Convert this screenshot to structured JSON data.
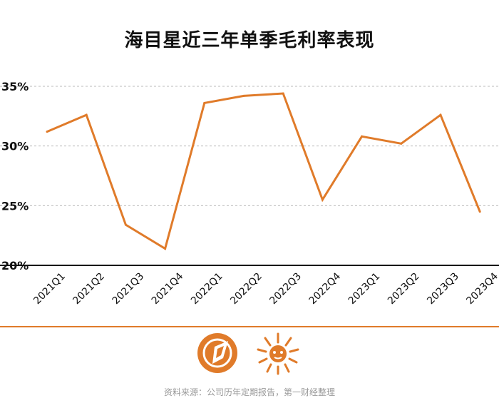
{
  "title": "海目星近三年单季毛利率表现",
  "source": "资料来源：公司历年定期报告，第一财经整理",
  "colors": {
    "line": "#E07B2A",
    "grid": "#bbbbbb",
    "axis": "#111111",
    "accent": "#E07B2A"
  },
  "logos": [
    "yicai-logo-icon",
    "lion-logo-icon"
  ],
  "chart_data": {
    "type": "line",
    "categories": [
      "2021Q1",
      "2021Q2",
      "2021Q3",
      "2021Q4",
      "2022Q1",
      "2022Q2",
      "2022Q3",
      "2022Q4",
      "2023Q1",
      "2023Q2",
      "2023Q3",
      "2023Q4"
    ],
    "series": [
      {
        "values": [
          31.2,
          32.6,
          23.4,
          21.4,
          33.6,
          34.2,
          34.4,
          25.5,
          30.8,
          30.2,
          32.6,
          24.5
        ]
      }
    ],
    "yticks": [
      "20%",
      "25%",
      "30%",
      "35%"
    ],
    "ytick_values": [
      20,
      25,
      30,
      35
    ],
    "ylim": [
      20,
      35
    ],
    "grid": true,
    "xlabel": "",
    "ylabel": ""
  }
}
